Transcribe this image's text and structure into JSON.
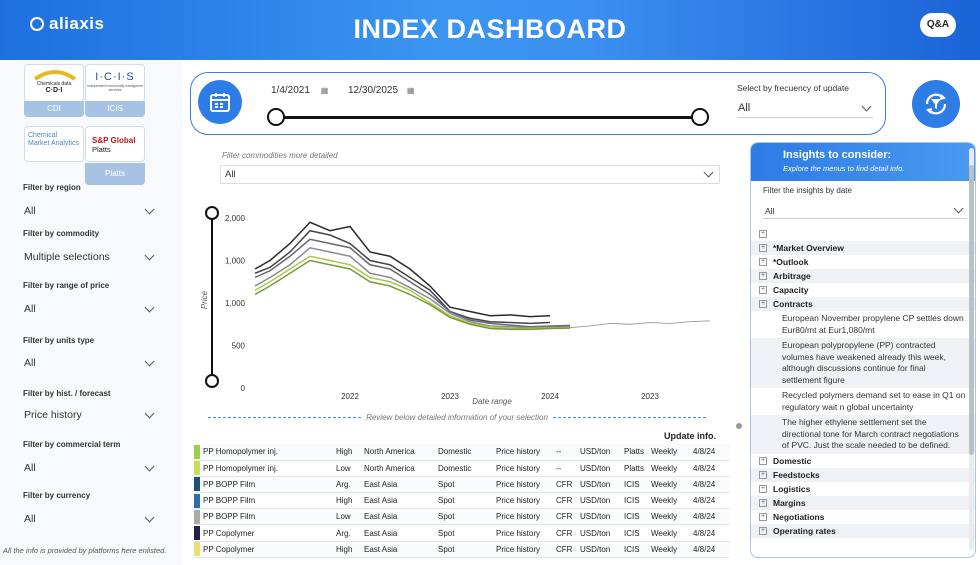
{
  "header": {
    "logo_text": "aliaxis",
    "title": "INDEX DASHBOARD",
    "qa_label": "Q&A"
  },
  "sources": [
    {
      "line1": "Chemicals data",
      "line2": "C·D·I",
      "label": "CDI"
    },
    {
      "line1": "I·C·I·S",
      "line2": "Independent commodity intelligence services",
      "label": "ICIS"
    },
    {
      "line1": "Chemical Market Analytics",
      "line2": "",
      "label": ""
    },
    {
      "line1": "S&P Global",
      "line2": "Platts",
      "label": "Platts"
    }
  ],
  "filters": [
    {
      "label": "Filter by region",
      "value": "All"
    },
    {
      "label": "Filter by commodity",
      "value": "Multiple selections"
    },
    {
      "label": "Filter by range of price",
      "value": "All"
    },
    {
      "label": "Filter by units type",
      "value": "All"
    },
    {
      "label": "Filter by hist. / forecast",
      "value": "Price history"
    },
    {
      "label": "Filter by commercial term",
      "value": "All"
    },
    {
      "label": "Filter by currency",
      "value": "All"
    }
  ],
  "footnote": "All the info is provided by platforms here enlisted.",
  "date_range": {
    "start": "1/4/2021",
    "end": "12/30/2025"
  },
  "frequency": {
    "label": "Select by frecuency of update",
    "value": "All"
  },
  "commodity_filter": {
    "label": "Filter commodities more detailed",
    "value": "All"
  },
  "chart_data": {
    "type": "line",
    "xlabel": "Date range",
    "ylabel": "Price",
    "x_ticks": [
      "2022",
      "2023",
      "2024",
      "2023"
    ],
    "y_ticks": [
      "2,000",
      "1,000",
      "1,000",
      "500",
      "0"
    ],
    "ylim": [
      0,
      2000
    ],
    "series": [
      {
        "color": "#2b2b2b",
        "x": [
          2021.05,
          2021.2,
          2021.4,
          2021.6,
          2021.8,
          2022.0,
          2022.2,
          2022.4,
          2022.6,
          2022.8,
          2023.0,
          2023.2,
          2023.4,
          2023.6,
          2023.8,
          2024.0
        ],
        "values": [
          1400,
          1500,
          1700,
          1950,
          1850,
          1900,
          1600,
          1550,
          1400,
          1200,
          950,
          900,
          850,
          860,
          840,
          850
        ]
      },
      {
        "color": "#444444",
        "x": [
          2021.05,
          2021.2,
          2021.4,
          2021.6,
          2021.8,
          2022.0,
          2022.2,
          2022.4,
          2022.6,
          2022.8,
          2023.0,
          2023.2,
          2023.4,
          2023.6,
          2023.8,
          2024.0
        ],
        "values": [
          1350,
          1420,
          1600,
          1850,
          1800,
          1700,
          1500,
          1450,
          1300,
          1150,
          900,
          820,
          780,
          770,
          760,
          770
        ]
      },
      {
        "color": "#666677",
        "x": [
          2021.05,
          2021.2,
          2021.4,
          2021.6,
          2021.8,
          2022.0,
          2022.2,
          2022.4,
          2022.6,
          2022.8,
          2023.0,
          2023.2,
          2023.4,
          2023.6,
          2023.8,
          2024.0,
          2024.2
        ],
        "values": [
          1300,
          1380,
          1550,
          1750,
          1700,
          1650,
          1450,
          1400,
          1250,
          1100,
          900,
          800,
          760,
          740,
          720,
          730,
          735
        ]
      },
      {
        "color": "#8a8a99",
        "x": [
          2021.05,
          2021.2,
          2021.4,
          2021.6,
          2021.8,
          2022.0,
          2022.2,
          2022.4,
          2022.6,
          2022.8,
          2023.0,
          2023.2,
          2023.4,
          2023.6,
          2023.8,
          2024.0,
          2024.2
        ],
        "values": [
          1200,
          1300,
          1450,
          1650,
          1600,
          1550,
          1350,
          1300,
          1180,
          1050,
          880,
          780,
          730,
          720,
          710,
          715,
          720
        ]
      },
      {
        "color": "#a8c84a",
        "x": [
          2021.05,
          2021.2,
          2021.4,
          2021.6,
          2021.8,
          2022.0,
          2022.2,
          2022.4,
          2022.6,
          2022.8,
          2023.0,
          2023.2,
          2023.4,
          2023.6,
          2023.8,
          2024.0,
          2024.2
        ],
        "values": [
          1150,
          1250,
          1400,
          1550,
          1500,
          1450,
          1300,
          1250,
          1150,
          1000,
          850,
          760,
          720,
          700,
          700,
          705,
          710
        ]
      },
      {
        "color": "#7a9a3a",
        "x": [
          2021.05,
          2021.2,
          2021.4,
          2021.6,
          2021.8,
          2022.0,
          2022.2,
          2022.4,
          2022.6,
          2022.8,
          2023.0,
          2023.2,
          2023.4,
          2023.6,
          2023.8,
          2024.0,
          2024.2
        ],
        "values": [
          1100,
          1200,
          1350,
          1500,
          1450,
          1400,
          1250,
          1200,
          1100,
          980,
          830,
          750,
          700,
          690,
          690,
          700,
          705
        ]
      },
      {
        "color": "#999999",
        "x": [
          2024.2,
          2024.4,
          2024.6,
          2024.8,
          2025.0,
          2025.2,
          2025.4,
          2025.6
        ],
        "values": [
          710,
          730,
          760,
          750,
          770,
          760,
          780,
          790
        ]
      }
    ]
  },
  "review_text": "Review below detailed information of your selection",
  "update_label": "Update info.",
  "table": [
    {
      "color": "#9ccf48",
      "product": "PP Homopolymer inj.",
      "range": "High",
      "region": "North America",
      "market": "Domestic",
      "type": "Price history",
      "term": "--",
      "unit": "USD/ton",
      "source": "Platts",
      "freq": "Weekly",
      "date": "4/8/24"
    },
    {
      "color": "#c9de5a",
      "product": "PP Homopolymer inj.",
      "range": "Low",
      "region": "North America",
      "market": "Domestic",
      "type": "Price history",
      "term": "--",
      "unit": "USD/ton",
      "source": "Platts",
      "freq": "Weekly",
      "date": "4/8/24"
    },
    {
      "color": "#1d4f78",
      "product": "PP BOPP Film",
      "range": "Arg.",
      "region": "East Asia",
      "market": "Spot",
      "type": "Price history",
      "term": "CFR",
      "unit": "USD/ton",
      "source": "ICIS",
      "freq": "Weekly",
      "date": "4/8/24"
    },
    {
      "color": "#2a6fa8",
      "product": "PP BOPP Film",
      "range": "High",
      "region": "East Asia",
      "market": "Spot",
      "type": "Price history",
      "term": "CFR",
      "unit": "USD/ton",
      "source": "ICIS",
      "freq": "Weekly",
      "date": "4/8/24"
    },
    {
      "color": "#aaaaaa",
      "product": "PP BOPP Film",
      "range": "Low",
      "region": "East Asia",
      "market": "Spot",
      "type": "Price history",
      "term": "CFR",
      "unit": "USD/ton",
      "source": "ICIS",
      "freq": "Weekly",
      "date": "4/8/24"
    },
    {
      "color": "#222244",
      "product": "PP Copolymer",
      "range": "Arg.",
      "region": "East Asia",
      "market": "Spot",
      "type": "Price history",
      "term": "CFR",
      "unit": "USD/ton",
      "source": "ICIS",
      "freq": "Weekly",
      "date": "4/8/24"
    },
    {
      "color": "#e8e070",
      "product": "PP Copolymer",
      "range": "High",
      "region": "East Asia",
      "market": "Spot",
      "type": "Price history",
      "term": "CFR",
      "unit": "USD/ton",
      "source": "ICIS",
      "freq": "Weekly",
      "date": "4/8/24"
    }
  ],
  "insights": {
    "title": "Insights to consider:",
    "subtitle": "Explore the menus to find detail info.",
    "date_label": "Filter the insights by date",
    "date_value": "All",
    "before": [
      "",
      "*Market Overview",
      "*Outlook",
      "Arbitrage",
      "Capacity",
      "Contracts"
    ],
    "notes": [
      "European November propylene CP settles down Eur80/mt at Eur1,080/mt",
      "European polypropylene (PP) contracted volumes have weakened already this week, although discussions continue for final settlement figure",
      "Recycled polymers demand set to ease in Q1 on regulatory wait n global uncertainty",
      "The higher ethylene settlement set the directional tone for March contract negotiations of PVC. Just the scale needed to be defined."
    ],
    "after": [
      "Domestic",
      "Feedstocks",
      "Logistics",
      "Margins",
      "Negotiations",
      "Operating rates"
    ]
  }
}
